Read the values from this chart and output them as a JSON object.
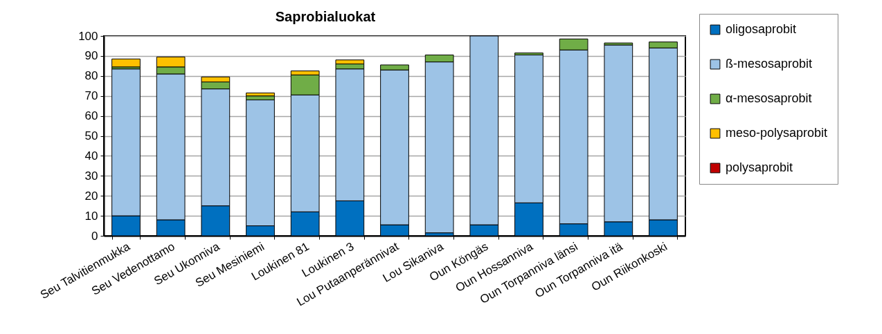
{
  "chart_data": {
    "type": "bar",
    "title": "Saprobialuokat",
    "stacked": true,
    "grid": "y",
    "legend": "top right",
    "categories": [
      "Seu Talvitienmukka",
      "Seu Vedenottamo",
      "Seu Ukonniva",
      "Seu Mesiniemi",
      "Loukinen 81",
      "Loukinen 3",
      "Lou Putaanperännivat",
      "Lou Sikaniva",
      "Oun Köngäs",
      "Oun Hossanniva",
      "Oun Torpanniva länsi",
      "Oun Torpanniva itä",
      "Oun Riikonkoski"
    ],
    "ylim": [
      0,
      100
    ],
    "yticks": [
      0,
      10,
      20,
      30,
      40,
      50,
      60,
      70,
      80,
      90,
      100
    ],
    "series": [
      {
        "name": "oligosaprobit",
        "color": "#0070c0",
        "values": [
          10,
          8,
          15,
          5,
          12,
          17.5,
          5.5,
          1.5,
          5.5,
          16.5,
          6,
          7,
          8
        ]
      },
      {
        "name": "ß-mesosaprobit",
        "color": "#9dc3e6",
        "values": [
          73.5,
          73,
          58.5,
          63,
          58.5,
          66,
          77.5,
          85.5,
          94.5,
          74,
          87,
          88.5,
          86
        ]
      },
      {
        "name": "α-mesosaprobit",
        "color": "#70ad47",
        "values": [
          1,
          3.5,
          3.5,
          2,
          10,
          2.5,
          2.5,
          3.5,
          null,
          1,
          5.5,
          1,
          3
        ]
      },
      {
        "name": "meso-polysaprobit",
        "color": "#ffc000",
        "values": [
          4,
          5,
          2.5,
          1.5,
          2,
          2,
          null,
          null,
          null,
          null,
          null,
          null,
          null
        ]
      },
      {
        "name": "polysaprobit",
        "color": "#c00000",
        "values": [
          null,
          null,
          null,
          null,
          null,
          null,
          null,
          null,
          null,
          null,
          null,
          null,
          null
        ]
      }
    ]
  }
}
